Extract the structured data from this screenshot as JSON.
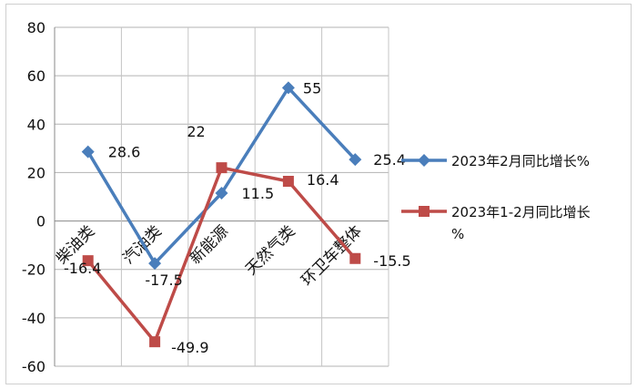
{
  "chart_data": {
    "type": "line",
    "title": "",
    "xlabel": "",
    "ylabel": "",
    "categories": [
      "柴油类",
      "汽油类",
      "新能源",
      "天然气类",
      "环卫车整体"
    ],
    "ylim": [
      -60,
      80
    ],
    "yticks": [
      80,
      60,
      40,
      20,
      0,
      -20,
      -40,
      -60
    ],
    "grid": true,
    "legend": "right",
    "series": [
      {
        "name": "2023年2月同比增长%",
        "color": "#4a7ebb",
        "marker": "diamond",
        "values": [
          28.6,
          -17.5,
          11.5,
          55,
          25.4
        ],
        "labels": [
          "28.6",
          "-17.5",
          "11.5",
          "55",
          "25.4"
        ]
      },
      {
        "name": "2023年1-2月同比增长%",
        "color": "#be4b48",
        "marker": "square",
        "values": [
          -16.4,
          -49.9,
          22,
          16.4,
          -15.5
        ],
        "labels": [
          "-16.4",
          "-49.9",
          "22",
          "16.4",
          "-15.5"
        ]
      }
    ]
  }
}
